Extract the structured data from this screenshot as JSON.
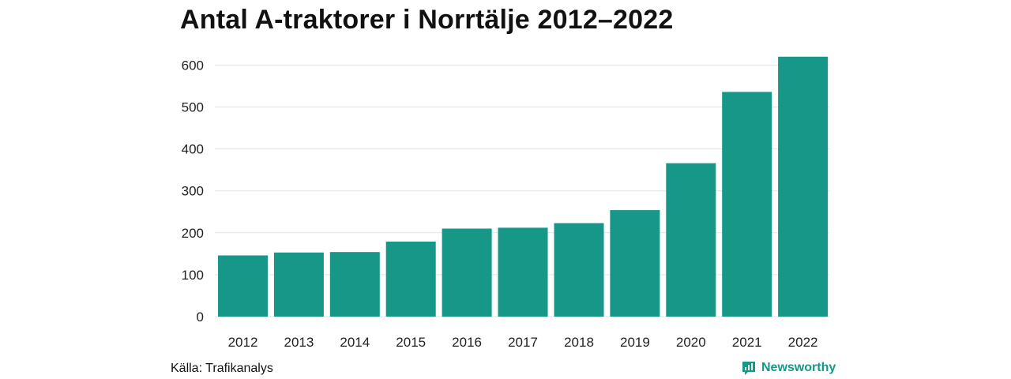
{
  "source": "Källa: Trafikanalys",
  "brand": {
    "name": "Newsworthy",
    "icon": "newsworthy-logo-icon",
    "color": "#169788"
  },
  "chart_data": {
    "type": "bar",
    "title": "Antal A-traktorer i Norrtälje 2012–2022",
    "xlabel": "",
    "ylabel": "",
    "categories": [
      "2012",
      "2013",
      "2014",
      "2015",
      "2016",
      "2017",
      "2018",
      "2019",
      "2020",
      "2021",
      "2022"
    ],
    "values": [
      146,
      153,
      154,
      179,
      210,
      212,
      223,
      254,
      366,
      536,
      620
    ],
    "ylim": [
      0,
      650
    ],
    "yticks": [
      0,
      100,
      200,
      300,
      400,
      500,
      600
    ],
    "grid": true,
    "legend": "none",
    "bar_color": "#169788",
    "grid_color": "#e2e2e2"
  }
}
